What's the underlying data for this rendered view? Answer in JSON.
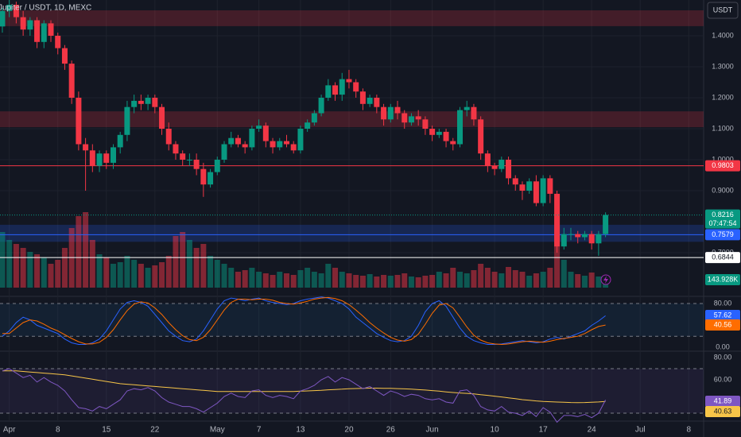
{
  "chart_data": {
    "type": "candlestick",
    "title": "Jupiter / USDT, 1D, MEXC",
    "currency": "USDT",
    "countdown": "07:47:54",
    "up_color": "#089981",
    "down_color": "#f23645",
    "xlim": [
      -0.34,
      101.15
    ],
    "xticks": [
      {
        "value": 1,
        "label": "Apr"
      },
      {
        "value": 8,
        "label": "8"
      },
      {
        "value": 15,
        "label": "15"
      },
      {
        "value": 22,
        "label": "22"
      },
      {
        "value": 31,
        "label": "May"
      },
      {
        "value": 37,
        "label": "7"
      },
      {
        "value": 43,
        "label": "13"
      },
      {
        "value": 50,
        "label": "20"
      },
      {
        "value": 56,
        "label": "26"
      },
      {
        "value": 62,
        "label": "Jun"
      },
      {
        "value": 71,
        "label": "10"
      },
      {
        "value": 78,
        "label": "17"
      },
      {
        "value": 85,
        "label": "24"
      },
      {
        "value": 92,
        "label": "Jul"
      },
      {
        "value": 99,
        "label": "8"
      }
    ],
    "ylim": [
      0.5615,
      1.5154
    ],
    "yticks": [
      {
        "value": 1.4,
        "label": "1.4000"
      },
      {
        "value": 1.3,
        "label": "1.3000"
      },
      {
        "value": 1.2,
        "label": "1.2000"
      },
      {
        "value": 1.1,
        "label": "1.1000"
      },
      {
        "value": 1.0,
        "label": "1.0000"
      },
      {
        "value": 0.9,
        "label": "0.9000"
      },
      {
        "value": 0.7,
        "label": "0.7000"
      }
    ],
    "grid": true,
    "candles": {
      "open": [
        1.43,
        1.48,
        1.5,
        1.46,
        1.42,
        1.45,
        1.38,
        1.44,
        1.4,
        1.36,
        1.31,
        1.2,
        1.05,
        1.03,
        0.98,
        1.02,
        0.99,
        1.04,
        1.08,
        1.17,
        1.19,
        1.18,
        1.2,
        1.17,
        1.1,
        1.05,
        1.02,
        1.0,
        1.0,
        0.97,
        0.92,
        0.96,
        1.0,
        1.05,
        1.07,
        1.05,
        1.04,
        1.1,
        1.11,
        1.06,
        1.04,
        1.06,
        1.05,
        1.03,
        1.1,
        1.12,
        1.15,
        1.2,
        1.24,
        1.21,
        1.26,
        1.25,
        1.22,
        1.18,
        1.2,
        1.17,
        1.13,
        1.17,
        1.15,
        1.12,
        1.14,
        1.13,
        1.1,
        1.08,
        1.09,
        1.06,
        1.05,
        1.16,
        1.17,
        1.13,
        1.02,
        0.98,
        0.97,
        1.0,
        0.94,
        0.92,
        0.9,
        0.93,
        0.86,
        0.94,
        0.89,
        0.72,
        0.76,
        0.76,
        0.75,
        0.76,
        0.73,
        0.76
      ],
      "high": [
        1.49,
        1.53,
        1.51,
        1.48,
        1.46,
        1.46,
        1.45,
        1.45,
        1.41,
        1.37,
        1.32,
        1.22,
        1.07,
        1.05,
        1.03,
        1.03,
        1.05,
        1.09,
        1.19,
        1.21,
        1.21,
        1.21,
        1.21,
        1.18,
        1.12,
        1.06,
        1.03,
        1.02,
        1.02,
        0.99,
        0.97,
        1.01,
        1.06,
        1.09,
        1.08,
        1.06,
        1.11,
        1.13,
        1.12,
        1.07,
        1.07,
        1.08,
        1.06,
        1.11,
        1.13,
        1.16,
        1.21,
        1.26,
        1.25,
        1.28,
        1.29,
        1.26,
        1.23,
        1.21,
        1.21,
        1.18,
        1.18,
        1.19,
        1.16,
        1.15,
        1.16,
        1.14,
        1.11,
        1.1,
        1.1,
        1.07,
        1.17,
        1.19,
        1.18,
        1.14,
        1.03,
        0.99,
        1.01,
        1.01,
        0.95,
        0.93,
        0.94,
        0.95,
        0.95,
        0.95,
        0.9,
        0.78,
        0.78,
        0.77,
        0.77,
        0.77,
        0.77,
        0.83
      ],
      "low": [
        1.41,
        1.46,
        1.44,
        1.4,
        1.4,
        1.36,
        1.36,
        1.38,
        1.34,
        1.29,
        1.18,
        1.03,
        0.9,
        0.96,
        0.96,
        0.97,
        0.97,
        1.02,
        1.06,
        1.15,
        1.16,
        1.16,
        1.15,
        1.08,
        1.03,
        1.0,
        0.98,
        0.98,
        0.95,
        0.88,
        0.91,
        0.95,
        0.99,
        1.04,
        1.04,
        1.02,
        1.03,
        1.09,
        1.04,
        1.02,
        1.03,
        1.04,
        1.02,
        1.02,
        1.09,
        1.11,
        1.14,
        1.19,
        1.19,
        1.19,
        1.23,
        1.2,
        1.16,
        1.17,
        1.15,
        1.11,
        1.12,
        1.13,
        1.1,
        1.11,
        1.11,
        1.08,
        1.06,
        1.07,
        1.04,
        1.03,
        1.04,
        1.14,
        1.11,
        1.0,
        0.96,
        0.95,
        0.96,
        0.92,
        0.9,
        0.87,
        0.89,
        0.85,
        0.85,
        0.86,
        0.7,
        0.71,
        0.74,
        0.73,
        0.74,
        0.71,
        0.69,
        0.75
      ],
      "close": [
        1.48,
        1.5,
        1.46,
        1.42,
        1.45,
        1.38,
        1.44,
        1.4,
        1.36,
        1.31,
        1.2,
        1.05,
        1.03,
        0.98,
        1.02,
        0.99,
        1.04,
        1.08,
        1.17,
        1.19,
        1.18,
        1.2,
        1.17,
        1.1,
        1.05,
        1.02,
        1.0,
        1.0,
        0.97,
        0.92,
        0.96,
        1.0,
        1.05,
        1.07,
        1.05,
        1.04,
        1.1,
        1.11,
        1.06,
        1.04,
        1.06,
        1.05,
        1.03,
        1.1,
        1.12,
        1.15,
        1.2,
        1.24,
        1.21,
        1.26,
        1.25,
        1.22,
        1.18,
        1.2,
        1.17,
        1.13,
        1.17,
        1.15,
        1.12,
        1.14,
        1.13,
        1.1,
        1.08,
        1.09,
        1.06,
        1.05,
        1.16,
        1.17,
        1.13,
        1.02,
        0.98,
        0.97,
        1.0,
        0.94,
        0.92,
        0.9,
        0.93,
        0.86,
        0.94,
        0.89,
        0.72,
        0.76,
        0.76,
        0.75,
        0.76,
        0.73,
        0.76,
        0.8216
      ]
    },
    "levels": [
      {
        "value": 0.9803,
        "color": "#f23645"
      },
      {
        "value": 0.7579,
        "color": "#2962ff"
      },
      {
        "value": 0.6844,
        "color": "#ffffff"
      }
    ],
    "zones": [
      {
        "from": 1.431,
        "to": 1.482,
        "color": "#f23645"
      },
      {
        "from": 1.105,
        "to": 1.156,
        "color": "#f23645"
      },
      {
        "from": 0.735,
        "to": 0.79,
        "color": "#2962ff"
      }
    ],
    "volume": {
      "ylim": [
        0,
        1000000
      ],
      "last_label": "143.928K",
      "values": [
        700000,
        600000,
        550000,
        500000,
        450000,
        420000,
        380000,
        300000,
        350000,
        500000,
        750000,
        900000,
        950000,
        600000,
        420000,
        380000,
        300000,
        320000,
        400000,
        350000,
        300000,
        250000,
        280000,
        320000,
        400000,
        650000,
        700000,
        600000,
        500000,
        550000,
        400000,
        350000,
        300000,
        250000,
        200000,
        220000,
        250000,
        200000,
        180000,
        160000,
        200000,
        180000,
        160000,
        220000,
        250000,
        200000,
        180000,
        300000,
        250000,
        200000,
        180000,
        160000,
        150000,
        170000,
        140000,
        160000,
        150000,
        160000,
        180000,
        140000,
        130000,
        150000,
        160000,
        200000,
        180000,
        250000,
        200000,
        180000,
        220000,
        300000,
        250000,
        200000,
        180000,
        260000,
        220000,
        200000,
        150000,
        180000,
        200000,
        250000,
        900000,
        350000,
        200000,
        170000,
        150000,
        190000,
        140000,
        143928
      ]
    },
    "stoch_rsi": {
      "ylim": [
        -7.3,
        91.6
      ],
      "yticks": [
        {
          "value": 80,
          "label": "80.00"
        },
        {
          "value": 0,
          "label": "0.00"
        }
      ],
      "bands": [
        20,
        80
      ],
      "k": {
        "color": "#2962ff",
        "values": [
          20,
          30,
          45,
          55,
          50,
          40,
          35,
          30,
          25,
          15,
          8,
          5,
          5,
          8,
          15,
          30,
          50,
          70,
          82,
          85,
          82,
          75,
          60,
          45,
          30,
          20,
          12,
          10,
          15,
          30,
          50,
          70,
          85,
          90,
          88,
          85,
          88,
          90,
          85,
          82,
          80,
          78,
          80,
          85,
          88,
          90,
          92,
          90,
          85,
          80,
          70,
          55,
          45,
          35,
          25,
          18,
          12,
          10,
          12,
          20,
          40,
          65,
          80,
          85,
          75,
          55,
          35,
          20,
          12,
          8,
          5,
          5,
          6,
          8,
          10,
          12,
          10,
          8,
          10,
          15,
          18,
          15,
          20,
          25,
          30,
          40,
          48,
          57.62
        ]
      },
      "d": {
        "color": "#ff6d00",
        "values": [
          25,
          25,
          35,
          45,
          50,
          48,
          42,
          35,
          30,
          23,
          16,
          10,
          6,
          6,
          9,
          18,
          32,
          50,
          67,
          79,
          83,
          81,
          72,
          60,
          45,
          32,
          21,
          14,
          12,
          18,
          32,
          50,
          68,
          82,
          88,
          88,
          87,
          88,
          88,
          86,
          82,
          80,
          79,
          81,
          84,
          88,
          90,
          91,
          89,
          85,
          78,
          68,
          57,
          45,
          35,
          26,
          18,
          13,
          11,
          14,
          24,
          42,
          62,
          77,
          80,
          72,
          55,
          37,
          22,
          13,
          8,
          6,
          5,
          6,
          8,
          10,
          11,
          10,
          9,
          11,
          14,
          16,
          18,
          20,
          25,
          32,
          38,
          40.56
        ]
      }
    },
    "rsi": {
      "ylim": [
        22.9,
        85
      ],
      "yticks": [
        {
          "value": 80,
          "label": "80.00"
        },
        {
          "value": 60,
          "label": "60.00"
        }
      ],
      "bands": [
        30,
        70
      ],
      "rsi": {
        "color": "#7e57c2",
        "values": [
          68,
          70,
          66,
          62,
          64,
          58,
          62,
          58,
          55,
          50,
          42,
          35,
          34,
          32,
          36,
          34,
          38,
          42,
          50,
          52,
          51,
          53,
          50,
          44,
          40,
          38,
          36,
          36,
          34,
          31,
          35,
          39,
          45,
          48,
          45,
          44,
          50,
          51,
          46,
          44,
          46,
          45,
          43,
          50,
          52,
          55,
          60,
          63,
          58,
          62,
          60,
          56,
          52,
          54,
          50,
          46,
          50,
          48,
          45,
          47,
          46,
          43,
          42,
          43,
          40,
          39,
          50,
          51,
          46,
          36,
          33,
          32,
          36,
          31,
          30,
          28,
          32,
          27,
          35,
          31,
          22,
          28,
          28,
          27,
          29,
          26,
          30,
          41.89
        ]
      },
      "ma": {
        "color": "#f7c548",
        "values": [
          68,
          68,
          68,
          67.5,
          67,
          66.5,
          66,
          65.5,
          65,
          64.5,
          63.5,
          62.5,
          61.5,
          60.5,
          59.5,
          58.5,
          57.5,
          56.5,
          56,
          55.5,
          55,
          54.5,
          54,
          53.5,
          53,
          52.5,
          52,
          51.5,
          51,
          50.5,
          50,
          49.5,
          49.5,
          49.5,
          49.5,
          49.5,
          49.5,
          49.5,
          49.5,
          49.5,
          49.5,
          49.5,
          49.5,
          49.8,
          50,
          50.3,
          50.6,
          51,
          51.3,
          51.6,
          52,
          52.2,
          52.4,
          52.5,
          52.5,
          52.4,
          52.3,
          52.1,
          51.9,
          51.6,
          51.2,
          50.8,
          50.3,
          49.8,
          49.2,
          48.6,
          48.2,
          47.8,
          47.3,
          46.6,
          46,
          45.3,
          44.6,
          43.8,
          43,
          42.2,
          41.6,
          41,
          40.6,
          40.3,
          40,
          39.8,
          39.6,
          39.5,
          39.6,
          39.8,
          40.1,
          40.63
        ]
      }
    }
  }
}
